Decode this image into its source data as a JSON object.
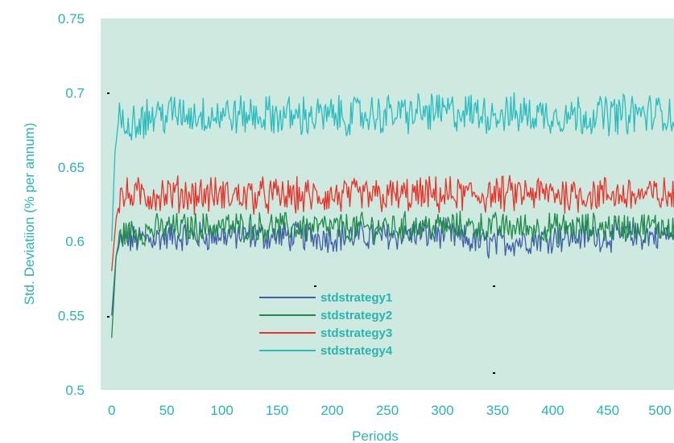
{
  "chart_data": {
    "type": "line",
    "xlabel": "Periods",
    "ylabel": "Std. Deviatiion (% per annum)",
    "xlim": [
      -10,
      510
    ],
    "ylim": [
      0.5,
      0.75
    ],
    "xticks": [
      0,
      50,
      100,
      150,
      200,
      250,
      300,
      350,
      400,
      450,
      500
    ],
    "yticks": [
      0.5,
      0.55,
      0.6,
      0.65,
      0.7,
      0.75
    ],
    "x_tick_labels": [
      "0",
      "50",
      "100",
      "150",
      "200",
      "250",
      "300",
      "350",
      "400",
      "450",
      "500"
    ],
    "y_tick_labels": [
      "0.5",
      "0.55",
      "0.6",
      "0.65",
      "0.7",
      "0.75"
    ],
    "grid": false,
    "legend_position": "lower-center",
    "plot_background": "#cde9e0",
    "text_color": "#2bb3b0",
    "series": [
      {
        "name": "stdstrategy1",
        "color": "#3f5fa8",
        "start": 0.55,
        "mean": 0.603,
        "amp": 0.009,
        "peak_points": [
          [
            0,
            0.55
          ],
          [
            4,
            0.59
          ],
          [
            8,
            0.6
          ],
          [
            50,
            0.603
          ],
          [
            100,
            0.604
          ],
          [
            200,
            0.603
          ],
          [
            300,
            0.605
          ],
          [
            340,
            0.598
          ],
          [
            400,
            0.603
          ],
          [
            500,
            0.604
          ]
        ]
      },
      {
        "name": "stdstrategy2",
        "color": "#1f8a4a",
        "start": 0.535,
        "mean": 0.609,
        "amp": 0.009,
        "peak_points": [
          [
            0,
            0.535
          ],
          [
            4,
            0.59
          ],
          [
            8,
            0.605
          ],
          [
            50,
            0.609
          ],
          [
            100,
            0.61
          ],
          [
            200,
            0.609
          ],
          [
            300,
            0.61
          ],
          [
            400,
            0.609
          ],
          [
            500,
            0.61
          ]
        ]
      },
      {
        "name": "stdstrategy3",
        "color": "#e8332a",
        "start": 0.58,
        "mean": 0.63,
        "amp": 0.011,
        "peak_points": [
          [
            0,
            0.58
          ],
          [
            4,
            0.615
          ],
          [
            8,
            0.63
          ],
          [
            50,
            0.632
          ],
          [
            100,
            0.631
          ],
          [
            200,
            0.63
          ],
          [
            300,
            0.631
          ],
          [
            400,
            0.632
          ],
          [
            500,
            0.631
          ]
        ]
      },
      {
        "name": "stdstrategy4",
        "color": "#2bbcc0",
        "start": 0.6,
        "mean": 0.685,
        "amp": 0.012,
        "peak_points": [
          [
            0,
            0.6
          ],
          [
            3,
            0.66
          ],
          [
            6,
            0.68
          ],
          [
            50,
            0.686
          ],
          [
            100,
            0.685
          ],
          [
            200,
            0.684
          ],
          [
            300,
            0.687
          ],
          [
            400,
            0.685
          ],
          [
            500,
            0.686
          ]
        ]
      }
    ]
  }
}
